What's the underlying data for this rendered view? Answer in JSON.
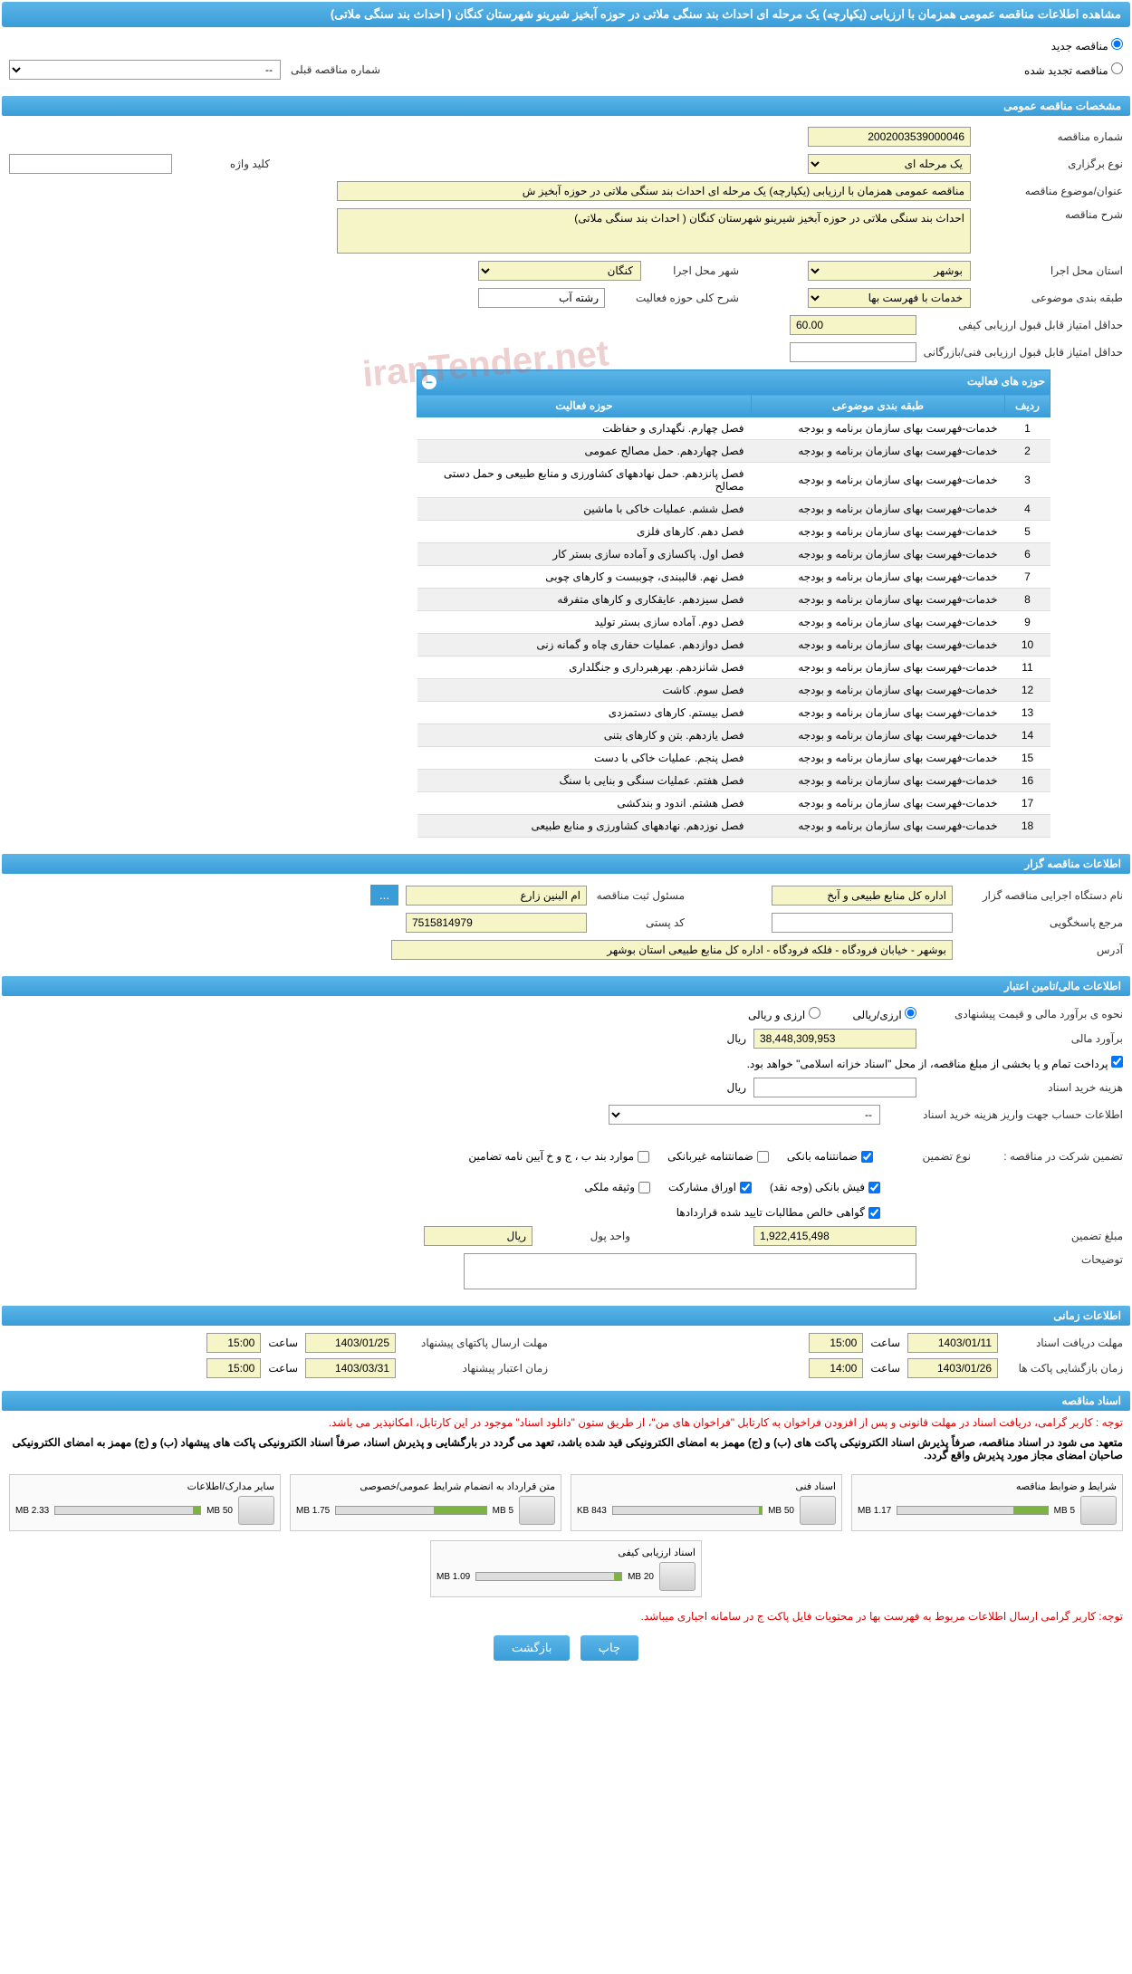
{
  "page_title": "مشاهده اطلاعات مناقصه عمومی همزمان با ارزیابی (یکپارچه) یک مرحله ای احداث بند سنگی ملاتی در حوزه آبخیز شیرینو شهرستان کنگان ( احداث بند سنگی ملاتی)",
  "radios": {
    "new_tender": "مناقصه جدید",
    "renewed_tender": "مناقصه تجدید شده",
    "prev_tender_label": "شماره مناقصه قبلی",
    "prev_tender_value": "--"
  },
  "sections": {
    "general": "مشخصات مناقصه عمومی",
    "activities": "حوزه های فعالیت",
    "organizer": "اطلاعات مناقصه گزار",
    "financial": "اطلاعات مالی/تامین اعتبار",
    "timing": "اطلاعات زمانی",
    "documents": "اسناد مناقصه"
  },
  "general": {
    "tender_no_label": "شماره مناقصه",
    "tender_no": "2002003539000046",
    "type_label": "نوع برگزاری",
    "type": "یک مرحله ای",
    "keyword_label": "کلید واژه",
    "title_label": "عنوان/موضوع مناقصه",
    "title": "مناقصه عمومی همزمان با ارزیابی (یکپارچه) یک مرحله ای احداث بند سنگی ملاتی در حوزه آبخیز ش",
    "desc_label": "شرح مناقصه",
    "desc": "احداث بند سنگی ملاتی در حوزه آبخیز شیرینو شهرستان کنگان ( احداث بند سنگی ملاتی)",
    "province_label": "استان محل اجرا",
    "province": "بوشهر",
    "city_label": "شهر محل اجرا",
    "city": "کنگان",
    "category_label": "طبقه بندی موضوعی",
    "category": "خدمات با فهرست بها",
    "activity_desc_label": "شرح کلی حوزه فعالیت",
    "activity_desc": "رشته آب",
    "min_quality_label": "حداقل امتیاز قابل قبول ارزیابی کیفی",
    "min_quality": "60.00",
    "min_tech_label": "حداقل امتیاز قابل قبول ارزیابی فنی/بازرگانی"
  },
  "activity_table": {
    "headers": [
      "ردیف",
      "طبقه بندی موضوعی",
      "حوزه فعالیت"
    ],
    "category_text": "خدمات-فهرست بهای سازمان برنامه و بودجه",
    "rows": [
      {
        "n": "1",
        "area": "فصل چهارم. نگهداری و حفاظت"
      },
      {
        "n": "2",
        "area": "فصل چهاردهم. حمل مصالح عمومی"
      },
      {
        "n": "3",
        "area": "فصل پانزدهم. حمل نهادههای کشاورزی و منابع طبیعی و حمل دستی مصالح"
      },
      {
        "n": "4",
        "area": "فصل ششم. عملیات خاکی با ماشین"
      },
      {
        "n": "5",
        "area": "فصل دهم. کارهای فلزی"
      },
      {
        "n": "6",
        "area": "فصل اول. پاکسازی و آماده سازی بستر کار"
      },
      {
        "n": "7",
        "area": "فصل نهم. قالببندی، چوببست و کارهای چوبی"
      },
      {
        "n": "8",
        "area": "فصل سیزدهم. عایقکاری و کارهای متفرقه"
      },
      {
        "n": "9",
        "area": "فصل دوم. آماده سازی بستر تولید"
      },
      {
        "n": "10",
        "area": "فصل دوازدهم. عملیات حفاری چاه و گمانه زنی"
      },
      {
        "n": "11",
        "area": "فصل شانزدهم. بهرهبرداری و جنگلداری"
      },
      {
        "n": "12",
        "area": "فصل سوم. کاشت"
      },
      {
        "n": "13",
        "area": "فصل بیستم. کارهای دستمزدی"
      },
      {
        "n": "14",
        "area": "فصل یازدهم. بتن و کارهای بتنی"
      },
      {
        "n": "15",
        "area": "فصل پنجم. عملیات خاکی با دست"
      },
      {
        "n": "16",
        "area": "فصل هفتم. عملیات سنگی و بنایی با سنگ"
      },
      {
        "n": "17",
        "area": "فصل هشتم. اندود و بندکشی"
      },
      {
        "n": "18",
        "area": "فصل  نوزدهم. نهادههای کشاورزی و منابع طبیعی"
      }
    ]
  },
  "organizer": {
    "exec_label": "نام دستگاه اجرایی مناقصه گزار",
    "exec": "اداره کل منابع طبیعی و آبخ",
    "resp_label": "مسئول ثبت مناقصه",
    "resp": "ام البنین زارع",
    "more": "...",
    "ref_label": "مرجع پاسخگویی",
    "postcode_label": "کد پستی",
    "postcode": "7515814979",
    "address_label": "آدرس",
    "address": "بوشهر - خیابان فرودگاه - فلکه فرودگاه - اداره کل منابع طبیعی استان بوشهر"
  },
  "financial": {
    "method_label": "نحوه ی برآورد مالی و قیمت پیشنهادی",
    "currency_rial": "ارزی/ریالی",
    "currency_foreign": "ارزی و ریالی",
    "estimate_label": "برآورد مالی",
    "estimate": "38,448,309,953",
    "unit_rial": "ریال",
    "payment_note": "پرداخت تمام و یا بخشی از مبلغ مناقصه، از محل \"اسناد خزانه اسلامی\" خواهد بود.",
    "doc_cost_label": "هزینه خرید اسناد",
    "account_label": "اطلاعات حساب جهت واریز هزینه خرید اسناد",
    "account_value": "--",
    "guarantee_label": "تضمین شرکت در مناقصه :",
    "guarantee_type_label": "نوع تضمین",
    "checkboxes": {
      "bank": "ضمانتنامه بانکی",
      "nonbank": "ضمانتنامه غیربانکی",
      "cases": "موارد بند ب ، ج و خ آیین نامه تضامین",
      "cash": "فیش بانکی (وجه نقد)",
      "securities": "اوراق مشارکت",
      "property": "وثیقه ملکی",
      "certificate": "گواهی خالص مطالبات تایید شده قراردادها"
    },
    "guarantee_amount_label": "مبلغ تضمین",
    "guarantee_amount": "1,922,415,498",
    "unit_label": "واحد پول",
    "unit_value": "ریال",
    "notes_label": "توضیحات"
  },
  "timing": {
    "receive_label": "مهلت دریافت اسناد",
    "receive_date": "1403/01/11",
    "time_label": "ساعت",
    "receive_time": "15:00",
    "packet_deadline_label": "مهلت ارسال پاکتهای پیشنهاد",
    "packet_deadline_date": "1403/01/25",
    "packet_deadline_time": "15:00",
    "open_label": "زمان بازگشایی پاکت ها",
    "open_date": "1403/01/26",
    "open_time": "14:00",
    "validity_label": "زمان اعتبار پیشنهاد",
    "validity_date": "1403/03/31",
    "validity_time": "15:00"
  },
  "notices": {
    "red1": "توجه : کاربر گرامی، دریافت اسناد در مهلت قانونی و پس از افزودن فراخوان به کارتابل \"فراخوان های من\"، از طریق ستون \"دانلود اسناد\" موجود در این کارتابل، امکانپذیر می باشد.",
    "black1": "متعهد می شود در اسناد مناقصه، صرفاً پذیرش اسناد الکترونیکی پاکت های (ب) و (ج) مهمز به امضای الکترونیکی قید شده باشد، تعهد می گردد در بارگشایی و پذیرش اسناد، صرفاً اسناد الکترونیکی پاکت های پیشهاد (ب) و (ج) مهمز به امضای الکترونیکی صاحبان امضای مجاز مورد پذیرش واقع گردد.",
    "red2": "توجه: کاربر گرامی ارسال اطلاعات مربوط به فهرست بها در محتویات فایل پاکت ج در سامانه اجباری میباشد."
  },
  "documents": [
    {
      "title": "شرایط و ضوابط مناقصه",
      "size": "1.17 MB",
      "max": "5 MB",
      "pct": 23
    },
    {
      "title": "اسناد فنی",
      "size": "843 KB",
      "max": "50 MB",
      "pct": 2
    },
    {
      "title": "متن قرارداد به انضمام شرایط عمومی/خصوصی",
      "size": "1.75 MB",
      "max": "5 MB",
      "pct": 35
    },
    {
      "title": "سایر مدارک/اطلاعات",
      "size": "2.33 MB",
      "max": "50 MB",
      "pct": 5
    },
    {
      "title": "اسناد ارزیابی کیفی",
      "size": "1.09 MB",
      "max": "20 MB",
      "pct": 5
    }
  ],
  "buttons": {
    "print": "چاپ",
    "back": "بازگشت"
  },
  "watermark": "iranTender.net",
  "colors": {
    "header_bg": "#3a9dd8",
    "yellow_bg": "#f5f5c8",
    "red_text": "#d00000",
    "progress": "#7cb342"
  }
}
